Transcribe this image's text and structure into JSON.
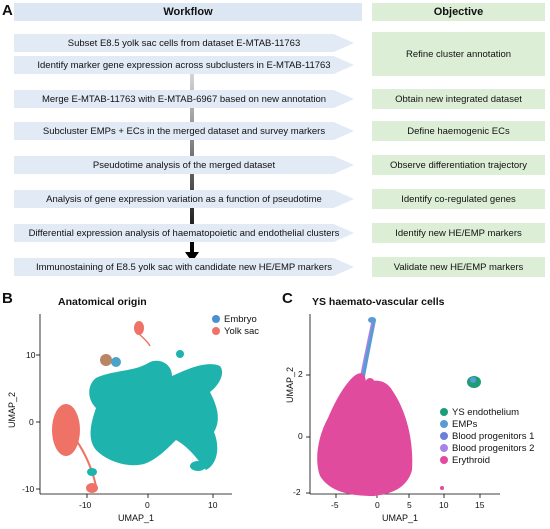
{
  "panels": {
    "a": "A",
    "b": "B",
    "c": "C"
  },
  "workflow_header": "Workflow",
  "objective_header": "Objective",
  "steps": [
    "Subset E8.5 yolk sac cells from dataset E-MTAB-11763",
    "Identify marker gene expression across subclusters in E-MTAB-11763",
    "Merge E-MTAB-11763 with E-MTAB-6967 based on new annotation",
    "Subcluster EMPs + ECs in the merged dataset and survey markers",
    "Pseudotime analysis of the merged dataset",
    "Analysis of gene expression variation as a function of pseudotime",
    "Differential expression analysis of haematopoietic and endothelial clusters",
    "Immunostaining of E8.5 yolk sac with candidate new HE/EMP markers"
  ],
  "objectives": [
    "Refine cluster annotation",
    "Obtain new integrated dataset",
    "Define haemogenic ECs",
    "Observe differentiation trajectory",
    "Identify co-regulated genes",
    "Identify new HE/EMP markers",
    "Validate new HE/EMP markers"
  ],
  "colors": {
    "workflow_box": "#e1eaf5",
    "objective_box": "#dcefd6",
    "embryo": "#1fb3ae",
    "yolk_sac": "#ef7266",
    "ys_endothelium": "#1b9e77",
    "emps": "#5b9bd5",
    "blood_progenitors_1": "#6a7fdb",
    "blood_progenitors_2": "#a783e8",
    "erythroid": "#e14b9e"
  },
  "plot_b": {
    "title": "Anatomical origin",
    "xlabel": "UMAP_1",
    "ylabel": "UMAP_2",
    "xticks": [
      "-10",
      "0",
      "10"
    ],
    "yticks": [
      "10",
      "0",
      "-10"
    ],
    "legend": [
      "Embryo",
      "Yolk sac"
    ]
  },
  "plot_c": {
    "title": "YS haemato-vascular cells",
    "xlabel": "UMAP_1",
    "ylabel": "UMAP_2",
    "xticks": [
      "-5",
      "0",
      "5",
      "10",
      "15"
    ],
    "yticks": [
      "2",
      "0",
      "-2"
    ],
    "legend": [
      "YS endothelium",
      "EMPs",
      "Blood progenitors 1",
      "Blood progenitors 2",
      "Erythroid"
    ]
  }
}
